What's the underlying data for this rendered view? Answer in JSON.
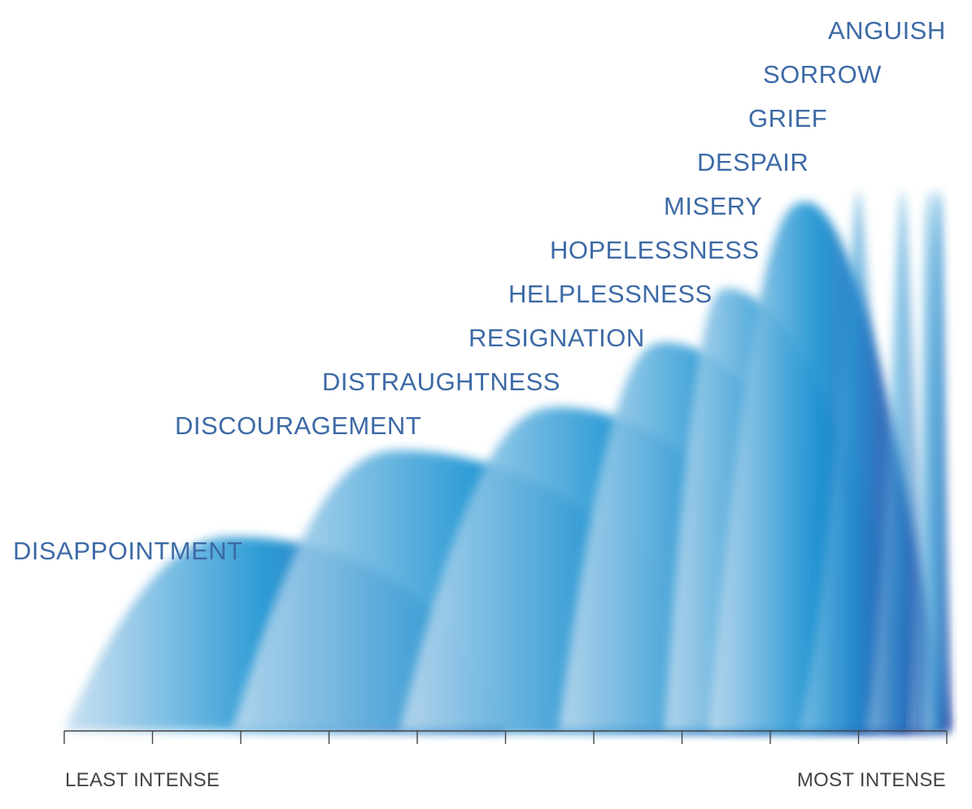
{
  "chart_data": {
    "type": "area",
    "title": "",
    "x_axis": {
      "start_label": "LEAST INTENSE",
      "end_label": "MOST INTENSE",
      "range": [
        0,
        10
      ],
      "tick_count": 11,
      "tick_labels_shown": false
    },
    "y_axis": {
      "shown": false
    },
    "series": [
      {
        "label": "DISAPPOINTMENT",
        "start": 0.0,
        "peak_x": 1.9,
        "peak_level": 0.36,
        "end": 5.0
      },
      {
        "label": "DISCOURAGEMENT",
        "start": 1.9,
        "peak_x": 3.8,
        "peak_level": 0.52,
        "end": 8.0
      },
      {
        "label": "DISTRAUGHTNESS",
        "start": 3.8,
        "peak_x": 5.6,
        "peak_level": 0.6,
        "end": 9.2
      },
      {
        "label": "RESIGNATION",
        "start": 5.6,
        "peak_x": 6.8,
        "peak_level": 0.72,
        "end": 9.6
      },
      {
        "label": "HELPLESSNESS",
        "start": 6.8,
        "peak_x": 7.5,
        "peak_level": 0.82,
        "end": 9.8
      },
      {
        "label": "HOPELESSNESS",
        "start": 7.3,
        "peak_x": 8.4,
        "peak_level": 0.98,
        "end": 10.0
      },
      {
        "label": "MISERY",
        "start": 8.5,
        "peak_x": 9.0,
        "peak_level": 1.0,
        "end": 10.0
      },
      {
        "label": "DESPAIR",
        "start": 9.1,
        "peak_x": 9.5,
        "peak_level": 1.0,
        "end": 10.0
      },
      {
        "label": "GRIEF",
        "start": 9.5,
        "peak_x": 9.8,
        "peak_level": 1.0,
        "end": 10.0
      },
      {
        "label": "SORROW",
        "start": 9.6,
        "peak_x": 9.9,
        "peak_level": 1.0,
        "end": 10.0
      },
      {
        "label": "ANGUISH",
        "start": 9.7,
        "peak_x": 9.9,
        "peak_level": 1.0,
        "end": 10.0
      }
    ],
    "colors": {
      "light": "#c4dcef",
      "mid": "#2196d3",
      "dark": "#3b3fa0",
      "label": "#3d6aa6",
      "axis": "#444444"
    },
    "legend": "none",
    "grid": false
  }
}
